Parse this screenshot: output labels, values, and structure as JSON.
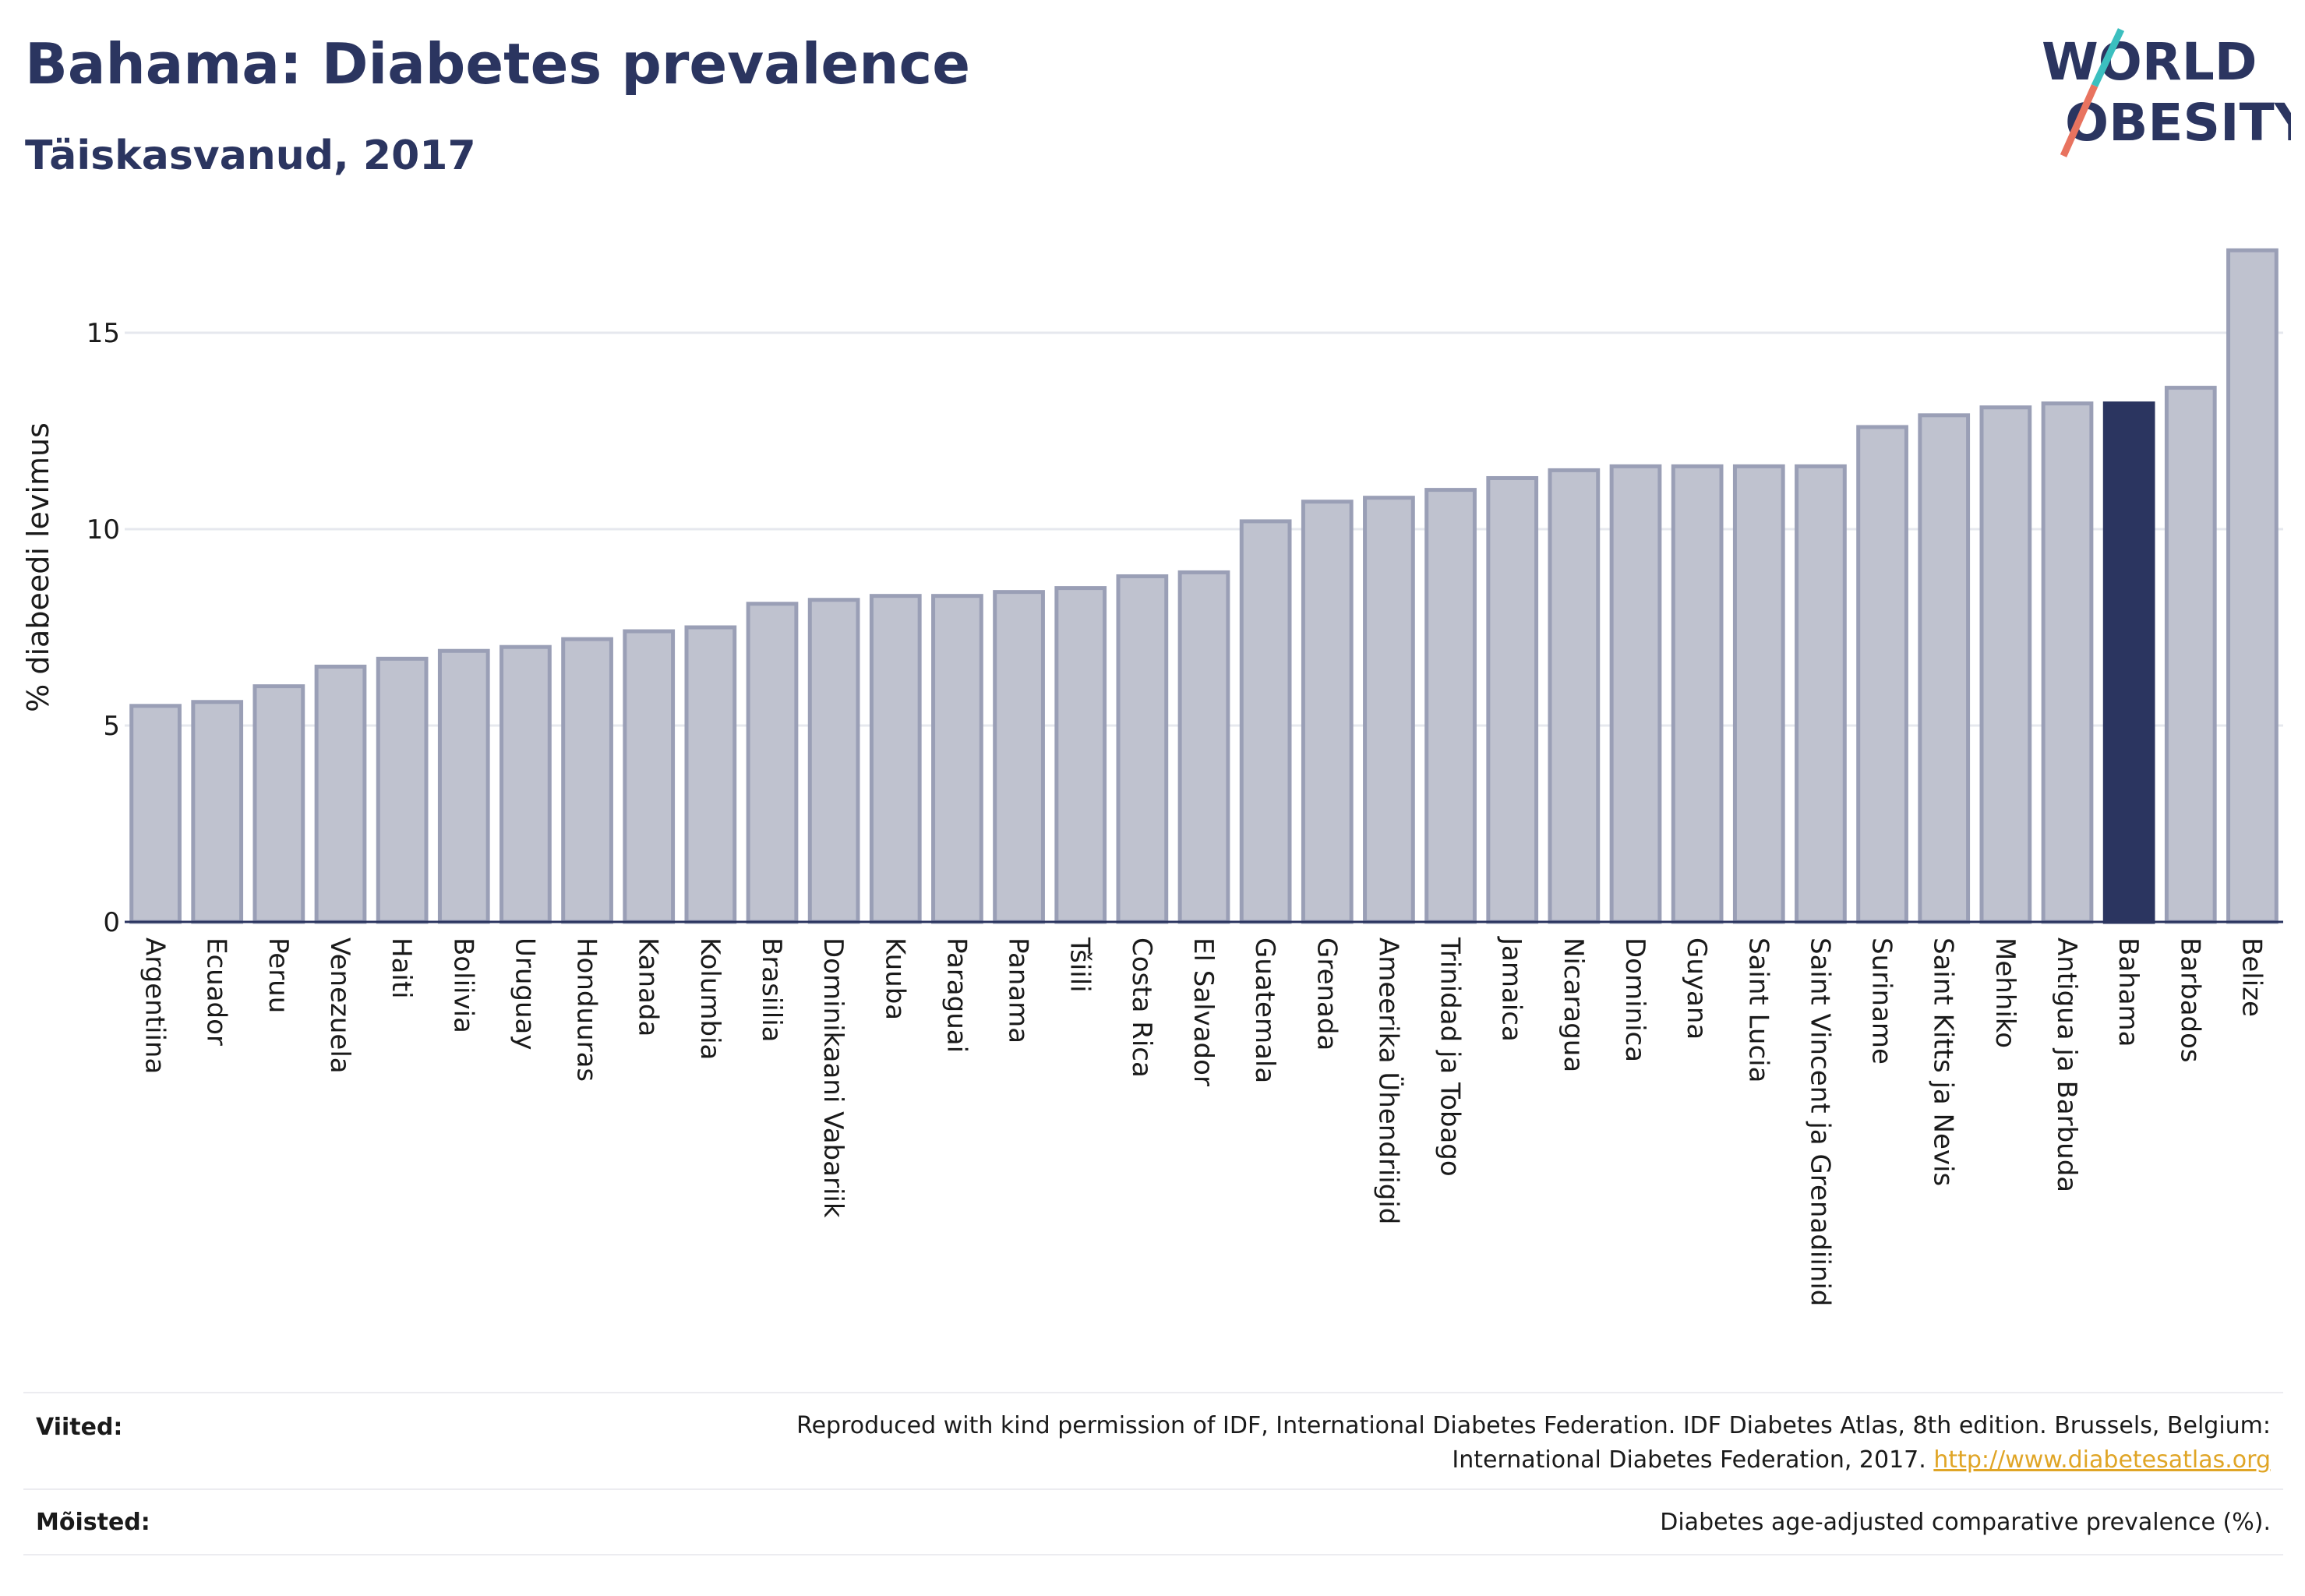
{
  "header": {
    "title": "Bahama: Diabetes prevalence",
    "subtitle": "Täiskasvanud, 2017"
  },
  "logo": {
    "line1": "WORLD",
    "line2": "OBESITY",
    "colors": {
      "text": "#2b3560",
      "slash_teal": "#3bbfbf",
      "slash_coral": "#e8735f"
    }
  },
  "colors": {
    "bar_fill": "#bfc2cf",
    "bar_stroke": "#9a9fb6",
    "highlight": "#2b3560",
    "grid": "#e6e8ee",
    "axis": "#2b3560"
  },
  "chart_data": {
    "type": "bar",
    "title": "Bahama: Diabetes prevalence",
    "subtitle": "Täiskasvanud, 2017",
    "xlabel": "",
    "ylabel": "% diabeedi levimus",
    "ylim": [
      0,
      17.5
    ],
    "yticks": [
      0,
      5,
      10,
      15
    ],
    "grid": true,
    "highlight": "Bahama",
    "categories": [
      "Argentiina",
      "Ecuador",
      "Peruu",
      "Venezuela",
      "Haiti",
      "Boliivia",
      "Uruguay",
      "Honduuras",
      "Kanada",
      "Kolumbia",
      "Brasiilia",
      "Dominikaani Vabariik",
      "Kuuba",
      "Paraguai",
      "Panama",
      "Tšiili",
      "Costa Rica",
      "El Salvador",
      "Guatemala",
      "Grenada",
      "Ameerika Ühendriigid",
      "Trinidad ja Tobago",
      "Jamaica",
      "Nicaragua",
      "Dominica",
      "Guyana",
      "Saint Lucia",
      "Saint Vincent ja Grenadiinid",
      "Suriname",
      "Saint Kitts ja Nevis",
      "Mehhiko",
      "Antigua ja Barbuda",
      "Bahama",
      "Barbados",
      "Belize"
    ],
    "values": [
      5.5,
      5.6,
      6.0,
      6.5,
      6.7,
      6.9,
      7.0,
      7.2,
      7.4,
      7.5,
      8.1,
      8.2,
      8.3,
      8.3,
      8.4,
      8.5,
      8.8,
      8.9,
      10.2,
      10.7,
      10.8,
      11.0,
      11.3,
      11.5,
      11.6,
      11.6,
      11.6,
      11.6,
      12.6,
      12.9,
      13.1,
      13.2,
      13.2,
      13.6,
      17.1
    ]
  },
  "notes": {
    "references_label": "Viited:",
    "references_text_line1": "Reproduced with kind permission of IDF, International Diabetes Federation. IDF Diabetes Atlas, 8th edition. Brussels, Belgium:",
    "references_text_line2": "International Diabetes Federation, 2017.",
    "references_link": "http://www.diabetesatlas.org",
    "definitions_label": "Mõisted:",
    "definitions_text": "Diabetes age-adjusted comparative prevalence (%)."
  }
}
